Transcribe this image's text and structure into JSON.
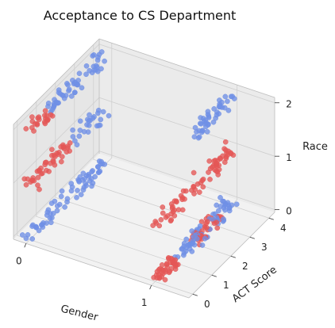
{
  "chart_data": {
    "type": "scatter",
    "title": "Acceptance to CS Department",
    "xlabel": "Gender",
    "ylabel": "ACT Score",
    "zlabel": "Race",
    "x_ticks": [
      "0",
      "1"
    ],
    "y_ticks": [
      "0",
      "1",
      "2",
      "3",
      "4"
    ],
    "z_ticks": [
      "0",
      "1",
      "2"
    ],
    "xlim": [
      -0.1,
      1.3
    ],
    "ylim": [
      -0.2,
      4.3
    ],
    "zlim": [
      -0.05,
      2.1
    ],
    "grid": true,
    "colors": {
      "accepted": "#e45756",
      "rejected": "#6f8fe6"
    },
    "clusters": [
      {
        "gender": 0,
        "race": 2,
        "act_range": [
          0.0,
          1.0
        ],
        "class": "accepted",
        "count": 22
      },
      {
        "gender": 0,
        "race": 2,
        "act_range": [
          1.1,
          4.0
        ],
        "class": "rejected",
        "count": 55
      },
      {
        "gender": 0,
        "race": 1,
        "act_range": [
          0.0,
          2.0
        ],
        "class": "accepted",
        "count": 45
      },
      {
        "gender": 0,
        "race": 1,
        "act_range": [
          2.1,
          4.0
        ],
        "class": "rejected",
        "count": 25
      },
      {
        "gender": 0,
        "race": 0,
        "act_range": [
          0.0,
          4.0
        ],
        "class": "rejected",
        "count": 70
      },
      {
        "gender": 1,
        "race": 2,
        "act_range": [
          2.0,
          4.0
        ],
        "class": "rejected",
        "count": 45
      },
      {
        "gender": 1,
        "race": 1,
        "act_range": [
          0.0,
          4.0
        ],
        "class": "accepted",
        "count": 75
      },
      {
        "gender": 1,
        "race": 0,
        "act_range": [
          0.0,
          1.0
        ],
        "class": "accepted",
        "count": 40
      },
      {
        "gender": 1,
        "race": 0,
        "act_range": [
          1.0,
          2.6
        ],
        "class": "rejected",
        "count": 40
      },
      {
        "gender": 1,
        "race": 0,
        "act_range": [
          2.0,
          3.3
        ],
        "class": "accepted",
        "count": 40
      },
      {
        "gender": 1,
        "race": 0,
        "act_range": [
          3.0,
          4.0
        ],
        "class": "rejected",
        "count": 30
      }
    ]
  }
}
